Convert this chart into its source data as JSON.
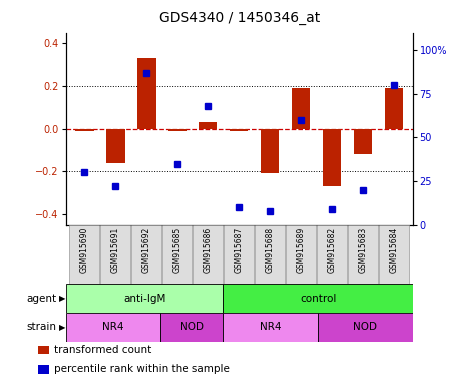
{
  "title": "GDS4340 / 1450346_at",
  "samples": [
    "GSM915690",
    "GSM915691",
    "GSM915692",
    "GSM915685",
    "GSM915686",
    "GSM915687",
    "GSM915688",
    "GSM915689",
    "GSM915682",
    "GSM915683",
    "GSM915684"
  ],
  "bar_values": [
    -0.01,
    -0.16,
    0.33,
    -0.01,
    0.03,
    -0.01,
    -0.21,
    0.19,
    -0.27,
    -0.12,
    0.19
  ],
  "percentile_values": [
    30,
    22,
    87,
    35,
    68,
    10,
    8,
    60,
    9,
    20,
    80
  ],
  "ylim_left": [
    -0.45,
    0.45
  ],
  "ylim_right": [
    0,
    110
  ],
  "yticks_left": [
    -0.4,
    -0.2,
    0.0,
    0.2,
    0.4
  ],
  "yticks_right": [
    0,
    25,
    50,
    75,
    100
  ],
  "ytick_labels_right": [
    "0",
    "25",
    "50",
    "75",
    "100%"
  ],
  "bar_color": "#BB2200",
  "dot_color": "#0000CC",
  "zero_line_color": "#CC0000",
  "grid_color": "#000000",
  "agent_groups": [
    {
      "label": "anti-IgM",
      "start": 0,
      "end": 5,
      "color": "#AAFFAA"
    },
    {
      "label": "control",
      "start": 5,
      "end": 11,
      "color": "#44EE44"
    }
  ],
  "strain_groups": [
    {
      "label": "NR4",
      "start": 0,
      "end": 3,
      "color": "#EE88EE"
    },
    {
      "label": "NOD",
      "start": 3,
      "end": 5,
      "color": "#CC44CC"
    },
    {
      "label": "NR4",
      "start": 5,
      "end": 8,
      "color": "#EE88EE"
    },
    {
      "label": "NOD",
      "start": 8,
      "end": 11,
      "color": "#CC44CC"
    }
  ],
  "legend_items": [
    {
      "label": "transformed count",
      "color": "#BB2200"
    },
    {
      "label": "percentile rank within the sample",
      "color": "#0000CC"
    }
  ],
  "title_fontsize": 10,
  "tick_fontsize": 7,
  "label_fontsize": 7.5,
  "sample_fontsize": 5.5,
  "legend_fontsize": 7.5
}
